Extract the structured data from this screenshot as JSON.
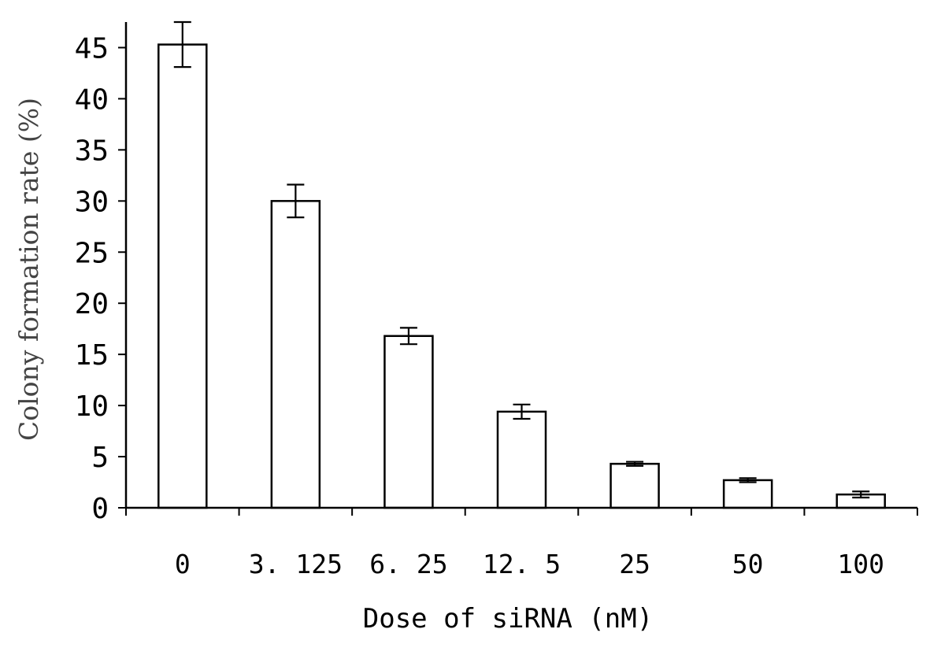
{
  "chart_data": {
    "type": "bar",
    "categories": [
      "0",
      "3.125",
      "6.25",
      "12.5",
      "25",
      "50",
      "100"
    ],
    "category_labels": [
      "0",
      "3. 125",
      "6. 25",
      "12. 5",
      "25",
      "50",
      "100"
    ],
    "values": [
      45.3,
      30.0,
      16.8,
      9.4,
      4.3,
      2.7,
      1.3
    ],
    "errors": [
      2.2,
      1.6,
      0.8,
      0.7,
      0.2,
      0.2,
      0.3
    ],
    "title": "",
    "xlabel": "Dose of siRNA (nM)",
    "ylabel": "Colony formation rate (%)",
    "ylim": [
      0,
      47.5
    ],
    "yticks": [
      0,
      5,
      10,
      15,
      20,
      25,
      30,
      35,
      40,
      45
    ],
    "grid": false,
    "legend": "none",
    "bar_fill": "#ffffff",
    "bar_stroke": "#000000"
  }
}
